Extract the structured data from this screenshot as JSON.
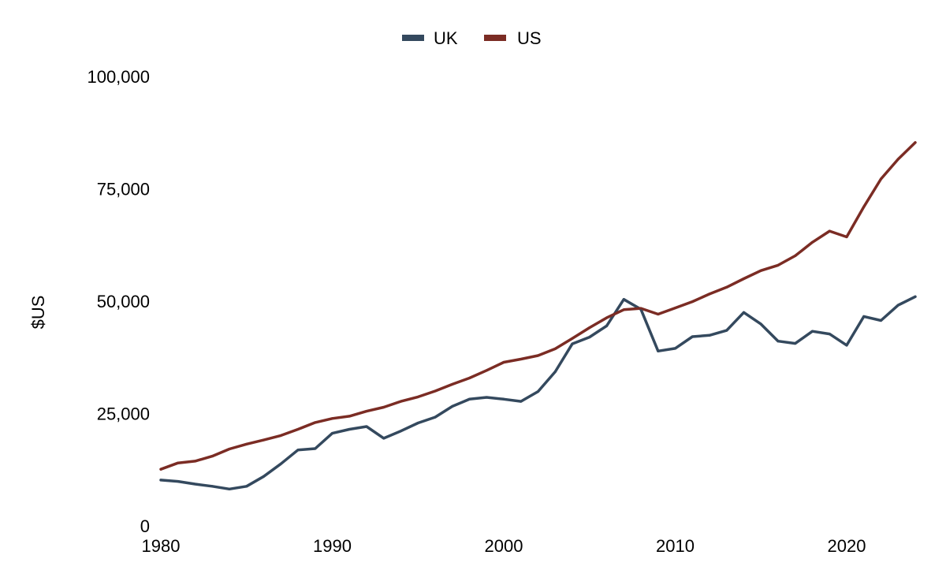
{
  "chart_data": {
    "type": "line",
    "title": "",
    "xlabel": "",
    "ylabel": "$US",
    "xlim": [
      1980,
      2024
    ],
    "ylim": [
      0,
      100000
    ],
    "x_ticks": [
      1980,
      1990,
      2000,
      2010,
      2020
    ],
    "x_tick_labels": [
      "1980",
      "1990",
      "2000",
      "2010",
      "2020"
    ],
    "y_ticks": [
      0,
      25000,
      50000,
      75000,
      100000
    ],
    "y_tick_labels": [
      "0",
      "25,000",
      "50,000",
      "75,000",
      "100,000"
    ],
    "grid": false,
    "legend_position": "top-center",
    "x": [
      1980,
      1981,
      1982,
      1983,
      1984,
      1985,
      1986,
      1987,
      1988,
      1989,
      1990,
      1991,
      1992,
      1993,
      1994,
      1995,
      1996,
      1997,
      1998,
      1999,
      2000,
      2001,
      2002,
      2003,
      2004,
      2005,
      2006,
      2007,
      2008,
      2009,
      2010,
      2011,
      2012,
      2013,
      2014,
      2015,
      2016,
      2017,
      2018,
      2019,
      2020,
      2021,
      2022,
      2023,
      2024
    ],
    "series": [
      {
        "name": "UK",
        "color": "#34495e",
        "values": [
          10200,
          9900,
          9300,
          8800,
          8200,
          8800,
          11000,
          13800,
          16900,
          17200,
          20600,
          21500,
          22100,
          19500,
          21100,
          22900,
          24200,
          26600,
          28200,
          28600,
          28200,
          27700,
          29900,
          34300,
          40500,
          42000,
          44500,
          50400,
          48200,
          38900,
          39500,
          42100,
          42400,
          43500,
          47500,
          44900,
          41100,
          40600,
          43300,
          42700,
          40200,
          46600,
          45700,
          49100,
          51000
        ]
      },
      {
        "name": "US",
        "color": "#7b2c24",
        "values": [
          12600,
          14000,
          14400,
          15500,
          17100,
          18200,
          19100,
          20100,
          21500,
          23000,
          23900,
          24400,
          25500,
          26400,
          27700,
          28700,
          30000,
          31500,
          32900,
          34600,
          36400,
          37100,
          37900,
          39400,
          41700,
          44100,
          46300,
          48100,
          48400,
          47100,
          48500,
          49900,
          51600,
          53100,
          55000,
          56800,
          58000,
          60100,
          63100,
          65600,
          64300,
          71000,
          77200,
          81600,
          85300
        ]
      }
    ]
  }
}
